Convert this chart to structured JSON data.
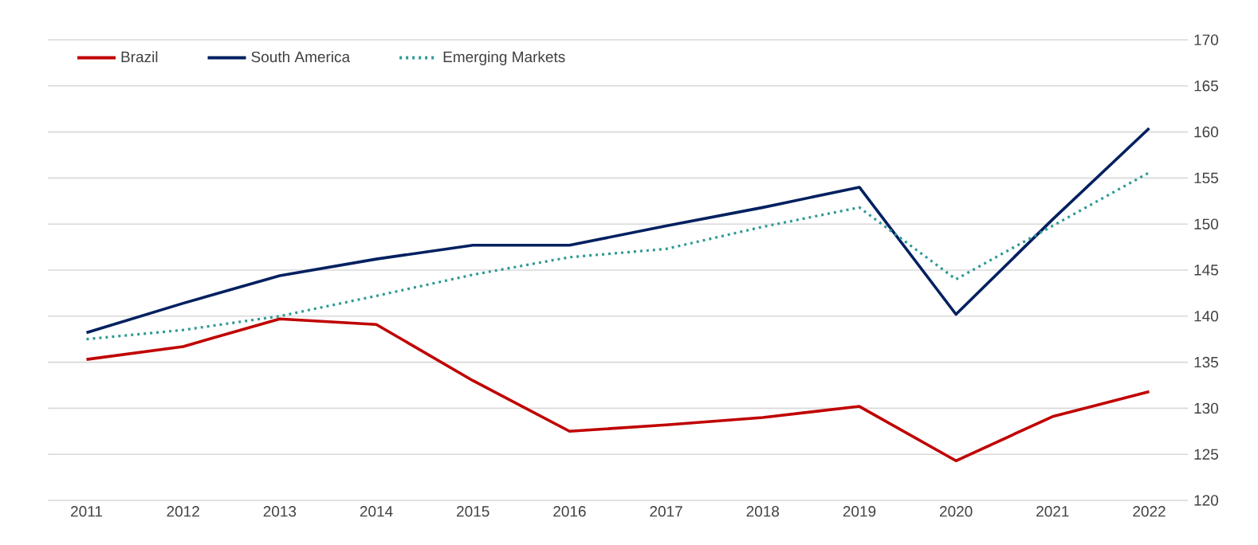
{
  "chart_data": {
    "type": "line",
    "categories": [
      "2011",
      "2012",
      "2013",
      "2014",
      "2015",
      "2016",
      "2017",
      "2018",
      "2019",
      "2020",
      "2021",
      "2022"
    ],
    "series": [
      {
        "name": "Brazil",
        "color": "#c00000",
        "line_style": "solid",
        "values": [
          135.3,
          136.7,
          139.7,
          139.1,
          133.0,
          127.5,
          128.2,
          129.0,
          130.2,
          124.3,
          129.1,
          131.8
        ]
      },
      {
        "name": "South America",
        "color": "#002060",
        "line_style": "solid",
        "values": [
          138.2,
          141.4,
          144.4,
          146.2,
          147.7,
          147.7,
          149.8,
          151.8,
          154.0,
          140.2,
          150.5,
          160.4
        ]
      },
      {
        "name": "Emerging Markets",
        "color": "#2e9a94",
        "line_style": "dotted",
        "values": [
          137.5,
          138.5,
          140.0,
          142.2,
          144.5,
          146.4,
          147.3,
          149.7,
          151.8,
          144.0,
          149.8,
          155.6
        ]
      }
    ],
    "ylim": [
      120,
      170
    ],
    "yticks": [
      120,
      125,
      130,
      135,
      140,
      145,
      150,
      155,
      160,
      165,
      170
    ],
    "grid": "y",
    "legend": "top left",
    "marker": "none"
  }
}
